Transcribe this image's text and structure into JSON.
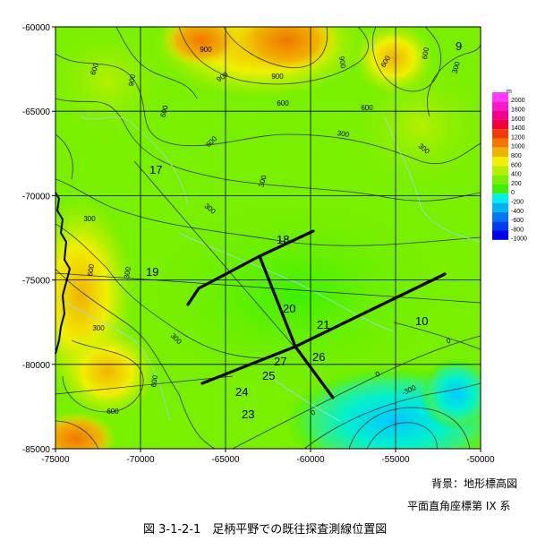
{
  "x_ticks": [
    "-75000",
    "-70000",
    "-65000",
    "-60000",
    "-55000",
    "-50000"
  ],
  "y_ticks": [
    "-60000",
    "-65000",
    "-70000",
    "-75000",
    "-80000",
    "-85000"
  ],
  "legend": {
    "unit": "m",
    "labels": [
      "2000",
      "1800",
      "1600",
      "1400",
      "1200",
      "1000",
      "800",
      "600",
      "400",
      "200",
      "0",
      "-200",
      "-400",
      "-600",
      "-800",
      "-1000"
    ],
    "colors": [
      "#ff3cff",
      "#ff18c8",
      "#f00090",
      "#f0003c",
      "#f03c00",
      "#f07800",
      "#f0b400",
      "#f0f000",
      "#b4f000",
      "#78f000",
      "#3cf000",
      "#00f0f0",
      "#00b4f0",
      "#0078f0",
      "#003cf0",
      "#0000f0"
    ]
  },
  "contour_labels": [
    {
      "text": "600",
      "k": "a1"
    },
    {
      "text": "900",
      "k": "a2"
    },
    {
      "text": "600",
      "k": "a3"
    },
    {
      "text": "900",
      "k": "a4"
    },
    {
      "text": "900",
      "k": "a5"
    },
    {
      "text": "600",
      "k": "a6"
    },
    {
      "text": "900",
      "k": "a7"
    },
    {
      "text": "900",
      "k": "a8"
    },
    {
      "text": "600",
      "k": "a9"
    },
    {
      "text": "300",
      "k": "a10"
    },
    {
      "text": "600",
      "k": "a11"
    },
    {
      "text": "600",
      "k": "a12"
    },
    {
      "text": "300",
      "k": "a13"
    },
    {
      "text": "300",
      "k": "a14"
    },
    {
      "text": "600",
      "k": "a15"
    },
    {
      "text": "300",
      "k": "a16"
    },
    {
      "text": "300",
      "k": "a17"
    },
    {
      "text": "300",
      "k": "a18"
    },
    {
      "text": "600",
      "k": "a19"
    },
    {
      "text": "300",
      "k": "a20"
    },
    {
      "text": "300",
      "k": "a21"
    },
    {
      "text": "300",
      "k": "a22"
    },
    {
      "text": "600",
      "k": "a23"
    },
    {
      "text": "600",
      "k": "a24"
    },
    {
      "text": "0",
      "k": "a25"
    },
    {
      "text": "0",
      "k": "a26"
    },
    {
      "text": "0",
      "k": "a27"
    },
    {
      "text": "-300",
      "k": "a28"
    }
  ],
  "survey_line_labels": [
    "9",
    "17",
    "18",
    "19",
    "20",
    "21",
    "10",
    "26",
    "27",
    "25",
    "24",
    "23"
  ],
  "notes": {
    "background": "背景：地形標高図",
    "coords": "平面直角座標第 IX 系",
    "caption": "図 3-1-2-1　足柄平野での既往探査測線位置図"
  }
}
